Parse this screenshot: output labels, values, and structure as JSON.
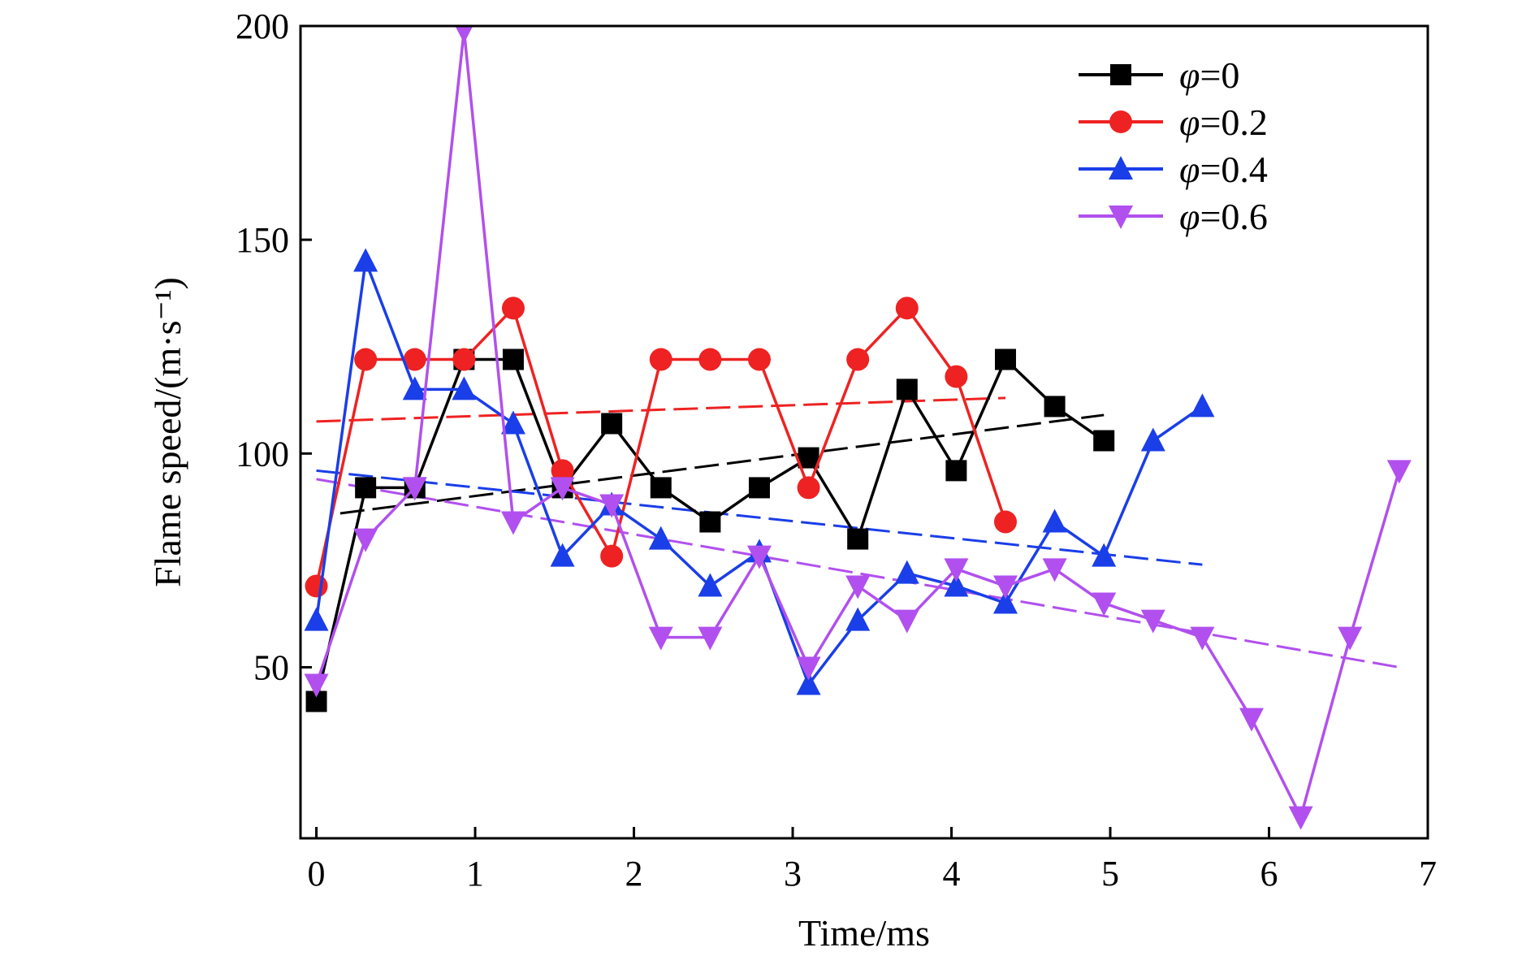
{
  "chart_data": {
    "type": "line",
    "xlabel": "Time/ms",
    "ylabel": "Flame speed/(m·s⁻¹)",
    "xlim": [
      -0.1,
      7
    ],
    "ylim": [
      10,
      200
    ],
    "xticks": [
      "0",
      "1",
      "2",
      "3",
      "4",
      "5",
      "6",
      "7"
    ],
    "yticks": [
      "50",
      "100",
      "150",
      "200"
    ],
    "legend_position": "top-right",
    "grid": false,
    "series": [
      {
        "name": "φ=0",
        "color": "#000000",
        "marker": "square",
        "x": [
          0,
          0.31,
          0.62,
          0.93,
          1.24,
          1.55,
          1.86,
          2.17,
          2.48,
          2.79,
          3.1,
          3.41,
          3.72,
          4.03,
          4.34,
          4.65,
          4.96
        ],
        "y": [
          42,
          92,
          92,
          122,
          122,
          92,
          107,
          92,
          84,
          92,
          99,
          80,
          115,
          96,
          122,
          111,
          103
        ],
        "fit": [
          [
            0.15,
            86
          ],
          [
            4.96,
            109
          ]
        ]
      },
      {
        "name": "φ=0.2",
        "color": "#ee2222",
        "marker": "circle",
        "x": [
          0,
          0.31,
          0.62,
          0.93,
          1.24,
          1.55,
          1.86,
          2.17,
          2.48,
          2.79,
          3.1,
          3.41,
          3.72,
          4.03,
          4.34
        ],
        "y": [
          69,
          122,
          122,
          122,
          134,
          96,
          76,
          122,
          122,
          122,
          92,
          122,
          134,
          118,
          84
        ],
        "fit": [
          [
            0,
            107.5
          ],
          [
            4.34,
            113
          ]
        ]
      },
      {
        "name": "φ=0.4",
        "color": "#1a3ee8",
        "marker": "triangle-up",
        "x": [
          0,
          0.31,
          0.62,
          0.93,
          1.24,
          1.55,
          1.86,
          2.17,
          2.48,
          2.79,
          3.1,
          3.41,
          3.72,
          4.03,
          4.34,
          4.65,
          4.96,
          5.27,
          5.58
        ],
        "y": [
          61,
          145,
          115,
          115,
          107,
          76,
          88,
          80,
          69,
          77,
          46,
          61,
          72,
          69,
          65,
          84,
          76,
          103,
          111
        ],
        "fit": [
          [
            0,
            96
          ],
          [
            5.58,
            74
          ]
        ]
      },
      {
        "name": "φ=0.6",
        "color": "#b150ee",
        "marker": "triangle-down",
        "x": [
          0,
          0.31,
          0.62,
          0.93,
          1.24,
          1.55,
          1.86,
          2.17,
          2.48,
          2.79,
          3.1,
          3.41,
          3.72,
          4.03,
          4.34,
          4.65,
          4.96,
          5.27,
          5.58,
          5.89,
          6.2,
          6.51,
          6.82
        ],
        "y": [
          46,
          80,
          92,
          199,
          84,
          92,
          88,
          57,
          57,
          76,
          50,
          69,
          61,
          73,
          69,
          73,
          65,
          61,
          57,
          38,
          15,
          57,
          96
        ],
        "fit": [
          [
            0,
            94
          ],
          [
            6.82,
            50
          ]
        ]
      }
    ]
  }
}
